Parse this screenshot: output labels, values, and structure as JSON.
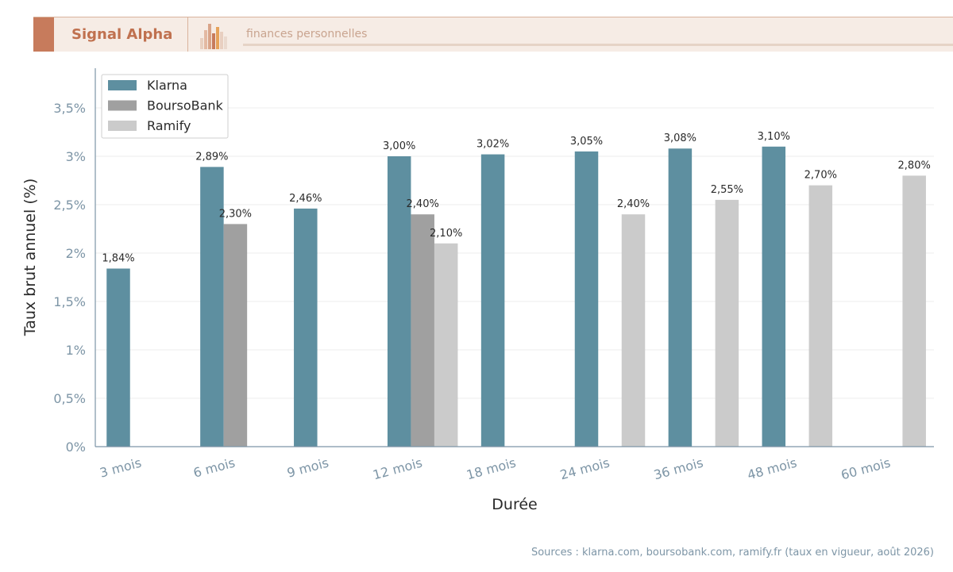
{
  "header": {
    "brand": "Signal Alpha",
    "tagline": "finances personnelles",
    "colors": {
      "accent": "#c77b5c",
      "brand_text": "#c0714f",
      "background": "#f6ece5"
    }
  },
  "chart_data": {
    "type": "bar",
    "categories": [
      "3 mois",
      "6 mois",
      "9 mois",
      "12 mois",
      "18 mois",
      "24 mois",
      "36 mois",
      "48 mois",
      "60 mois"
    ],
    "series": [
      {
        "name": "Klarna",
        "color": "#5e8fa0",
        "values": [
          1.84,
          2.89,
          2.46,
          3.0,
          3.02,
          3.05,
          3.08,
          3.1,
          null
        ],
        "labels": [
          "1,84%",
          "2,89%",
          "2,46%",
          "3,00%",
          "3,02%",
          "3,05%",
          "3,08%",
          "3,10%",
          null
        ]
      },
      {
        "name": "BoursoBank",
        "color": "#a0a0a0",
        "values": [
          null,
          2.3,
          null,
          2.4,
          null,
          null,
          null,
          null,
          null
        ],
        "labels": [
          null,
          "2,30%",
          null,
          "2,40%",
          null,
          null,
          null,
          null,
          null
        ]
      },
      {
        "name": "Ramify",
        "color": "#cbcbcb",
        "values": [
          null,
          null,
          null,
          2.1,
          null,
          2.4,
          2.55,
          2.7,
          2.8
        ],
        "labels": [
          null,
          null,
          null,
          "2,10%",
          null,
          "2,40%",
          "2,55%",
          "2,70%",
          "2,80%"
        ]
      }
    ],
    "xlabel": "Durée",
    "ylabel": "Taux brut annuel (%)",
    "ylim": [
      0,
      3.9
    ],
    "yticks": [
      0,
      0.5,
      1,
      1.5,
      2,
      2.5,
      3,
      3.5
    ],
    "ytick_labels": [
      "0%",
      "0,5%",
      "1%",
      "1,5%",
      "2%",
      "2,5%",
      "3%",
      "3,5%"
    ],
    "grid": true,
    "legend_position": "top-left"
  },
  "footer": {
    "source": "Sources : klarna.com, boursobank.com, ramify.fr (taux en vigueur, août 2026)"
  }
}
